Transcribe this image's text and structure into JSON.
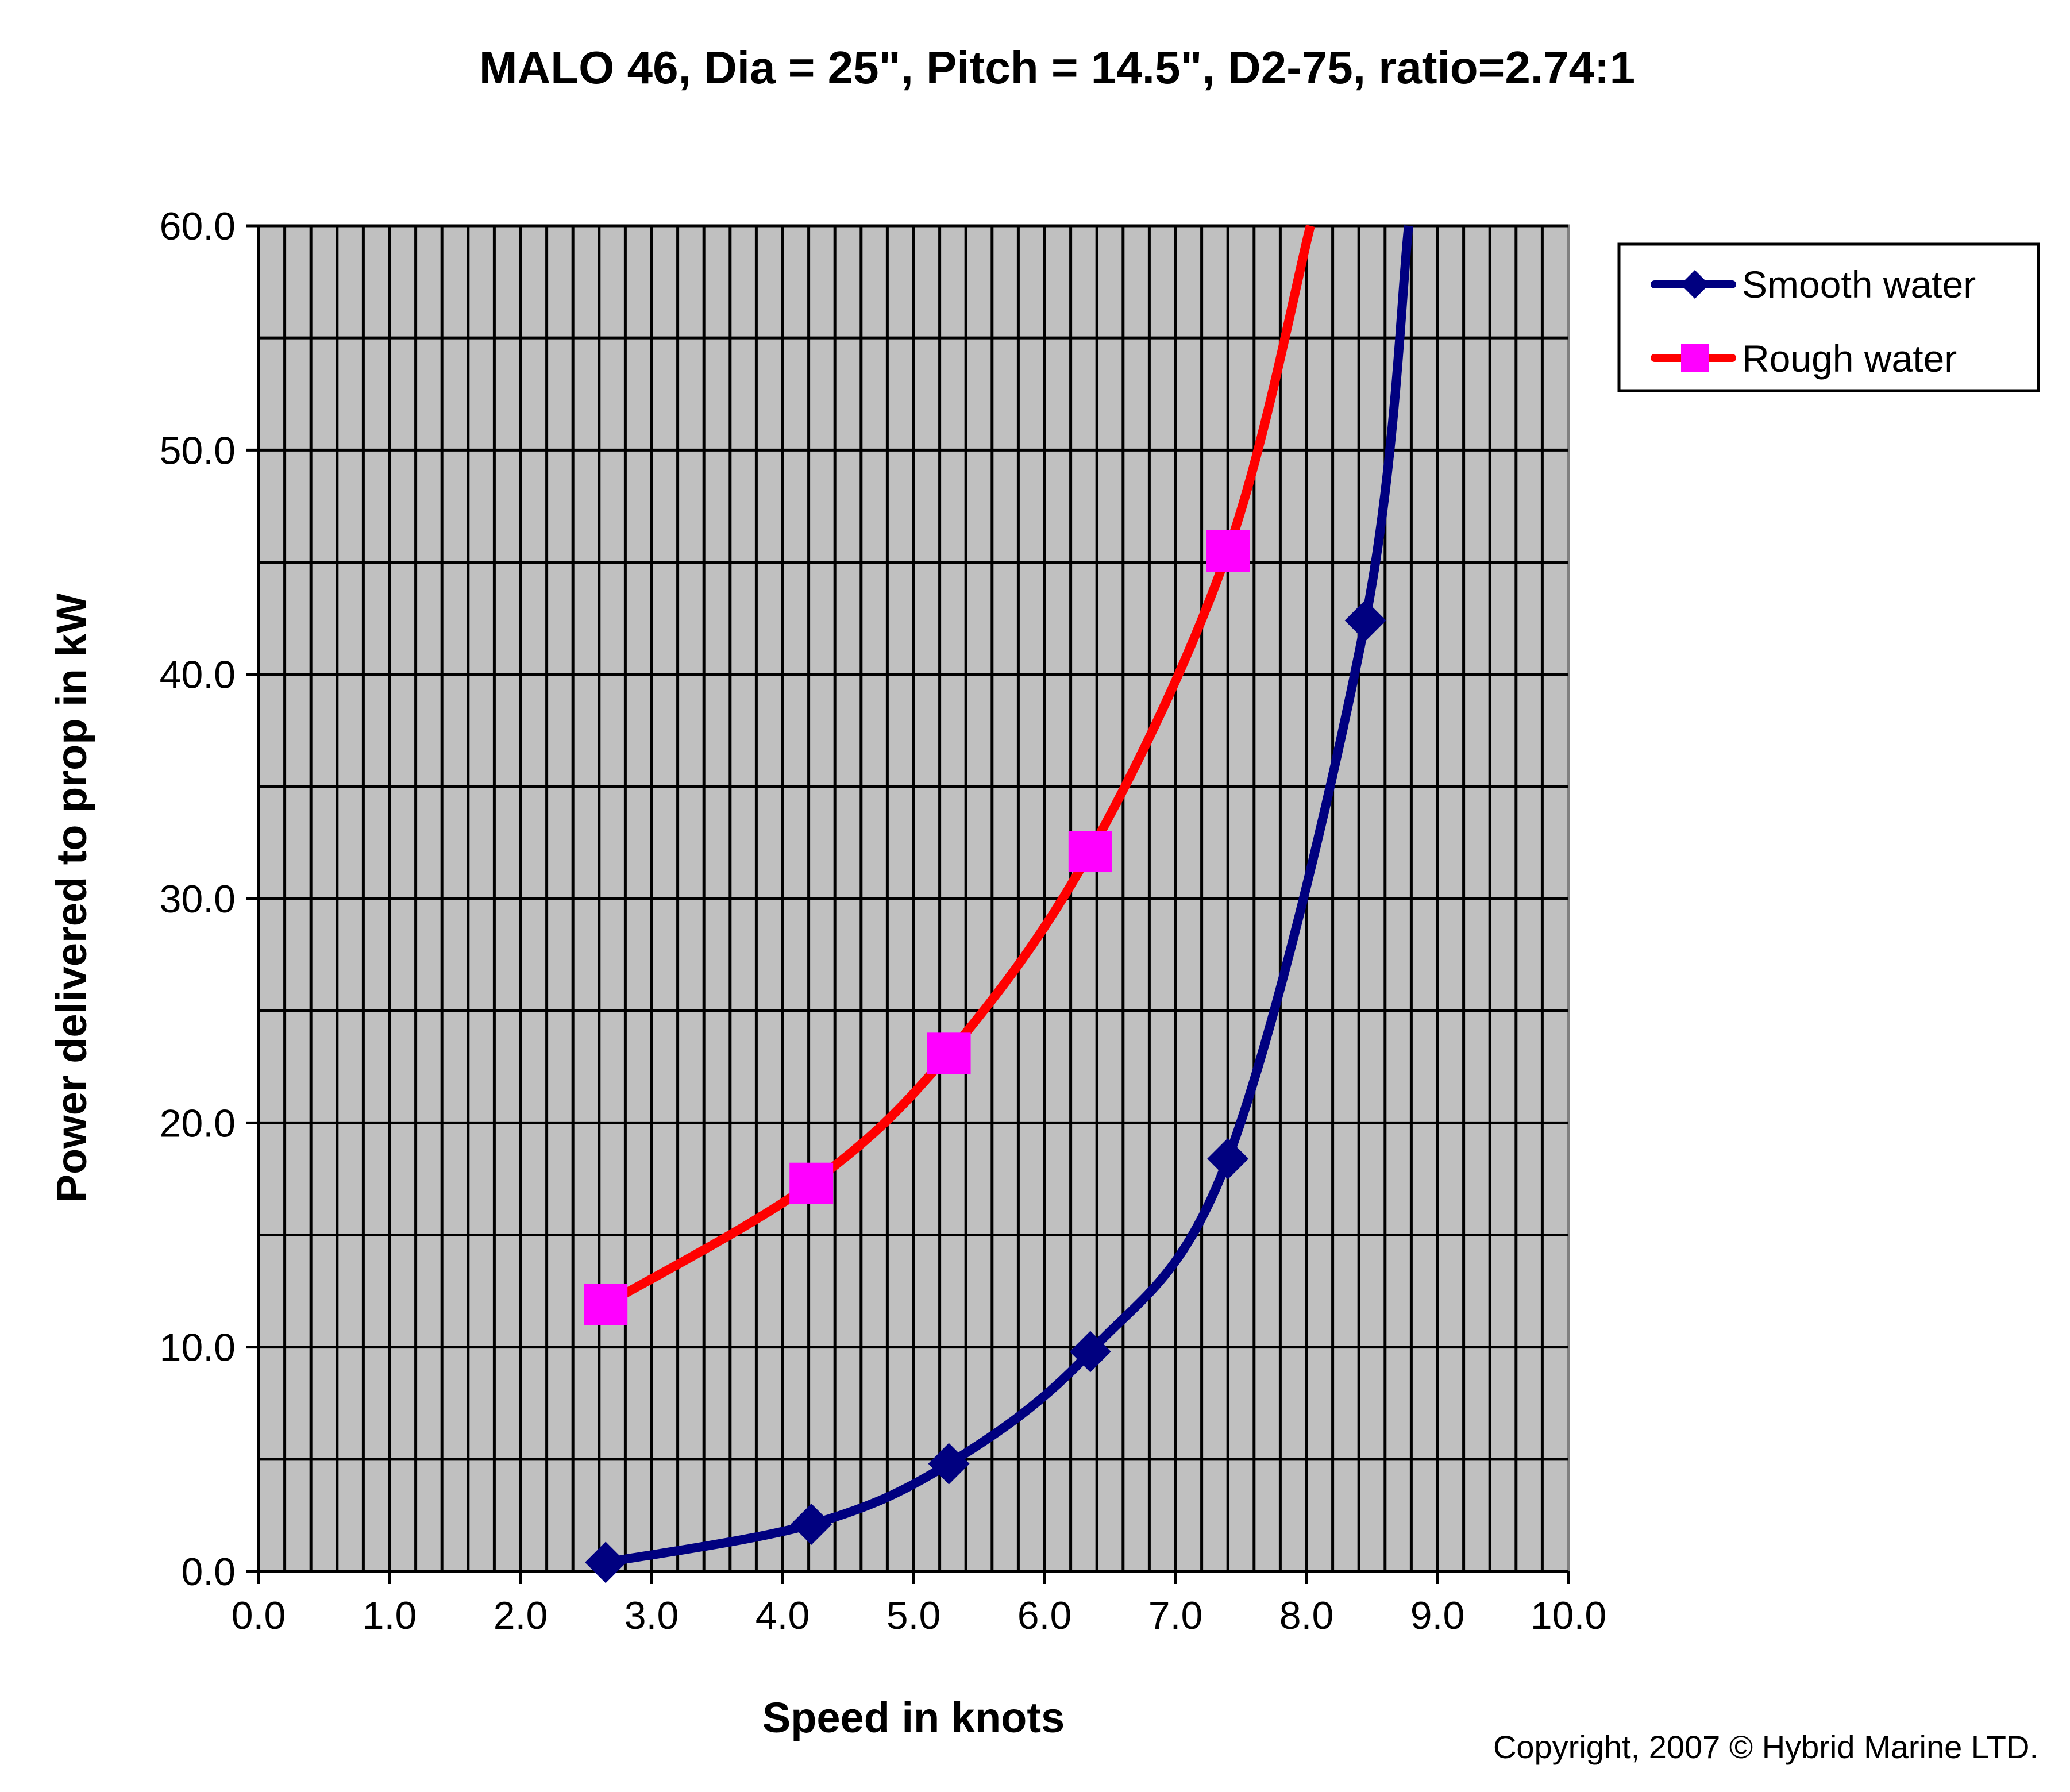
{
  "chart_data": {
    "type": "line",
    "title": "MALO 46, Dia = 25\", Pitch = 14.5\", D2-75, ratio=2.74:1",
    "xlabel": "Speed in knots",
    "ylabel": "Power delivered to prop in kW",
    "xlim": [
      0,
      10
    ],
    "ylim": [
      0,
      60
    ],
    "x_ticks": [
      "0.0",
      "1.0",
      "2.0",
      "3.0",
      "4.0",
      "5.0",
      "6.0",
      "7.0",
      "8.0",
      "9.0",
      "10.0"
    ],
    "y_ticks": [
      "0.0",
      "10.0",
      "20.0",
      "30.0",
      "40.0",
      "50.0",
      "60.0"
    ],
    "grid": {
      "x_minor_step": 0.2,
      "y_step": 5
    },
    "legend_position": "top-right",
    "series": [
      {
        "name": "Smooth water",
        "color": "#000080",
        "marker": "diamond",
        "marker_color": "#000080",
        "x": [
          2.65,
          4.22,
          5.27,
          6.35,
          7.4,
          8.45
        ],
        "y": [
          0.4,
          2.1,
          4.8,
          9.8,
          18.4,
          42.4
        ],
        "curve_end": [
          8.78,
          60
        ]
      },
      {
        "name": "Rough water",
        "color": "#ff0000",
        "marker": "square",
        "marker_color": "#ff00ff",
        "x": [
          2.65,
          4.22,
          5.27,
          6.35,
          7.4
        ],
        "y": [
          11.9,
          17.3,
          23.1,
          32.1,
          45.5
        ],
        "curve_end": [
          8.03,
          60
        ]
      }
    ],
    "annotations": [
      "Copyright, 2007 ©  Hybrid Marine LTD."
    ]
  }
}
